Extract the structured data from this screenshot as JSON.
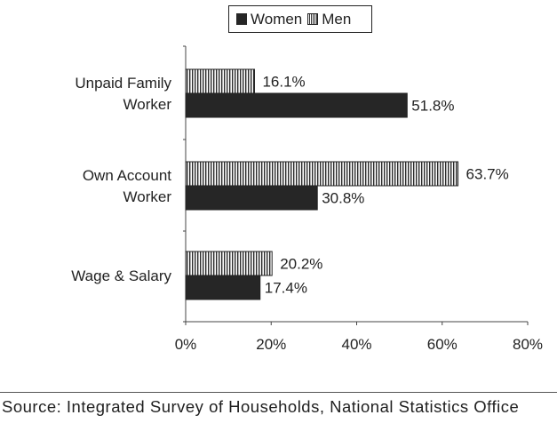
{
  "chart_data": {
    "type": "bar",
    "orientation": "horizontal",
    "categories": [
      "Unpaid Family Worker",
      "Own Account Worker",
      "Wage & Salary"
    ],
    "category_lines": [
      [
        "Unpaid Family",
        "Worker"
      ],
      [
        "Own Account",
        "Worker"
      ],
      [
        "Wage & Salary"
      ]
    ],
    "series": [
      {
        "name": "Women",
        "values": [
          51.8,
          30.8,
          17.4
        ],
        "labels": [
          "51.8%",
          "30.8%",
          "17.4%"
        ],
        "color": "#262626",
        "pattern": "solid"
      },
      {
        "name": "Men",
        "values": [
          16.1,
          63.7,
          20.2
        ],
        "labels": [
          "16.1%",
          "63.7%",
          "20.2%"
        ],
        "color": "#ffffff",
        "pattern": "vertical-stripes"
      }
    ],
    "xlim": [
      0,
      80
    ],
    "xticks": [
      0,
      20,
      40,
      60,
      80
    ],
    "xtick_labels": [
      "0%",
      "20%",
      "40%",
      "60%",
      "80%"
    ],
    "legend": {
      "position": "top-center",
      "items": [
        "Women",
        "Men"
      ]
    },
    "grid": false
  },
  "source": "Source: Integrated Survey of Households, National Statistics Office"
}
